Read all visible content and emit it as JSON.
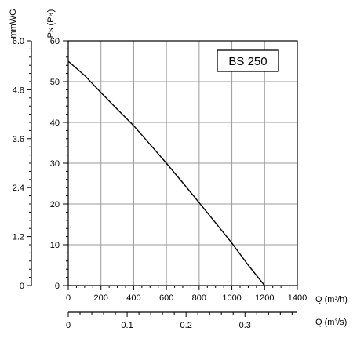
{
  "chart_data": {
    "type": "line",
    "legend_label": "BS 250",
    "series": [
      {
        "x": [
          0,
          100,
          200,
          300,
          400,
          500,
          600,
          700,
          800,
          900,
          1000,
          1100,
          1200
        ],
        "y": [
          55,
          51.5,
          47.3,
          43.2,
          39.2,
          34.6,
          30,
          25.2,
          20.3,
          15.4,
          10.4,
          5,
          0
        ]
      }
    ],
    "x_axis": {
      "label": "Q (m³/h)",
      "ticks": [
        "0",
        "200",
        "400",
        "600",
        "800",
        "1000",
        "1200",
        "1400"
      ],
      "range": [
        0,
        1400
      ]
    },
    "x2_axis": {
      "label": "Q (m³/s)",
      "ticks": [
        "0",
        "0.1",
        "0.2",
        "0.3"
      ],
      "tick_values": [
        0,
        0.1,
        0.2,
        0.3
      ]
    },
    "y_axis": {
      "label": "Ps (Pa)",
      "ticks": [
        "0",
        "10",
        "20",
        "30",
        "40",
        "50",
        "60"
      ],
      "range": [
        0,
        60
      ]
    },
    "y2_axis": {
      "label": "mmWG",
      "ticks": [
        "0",
        "1.2",
        "2.4",
        "3.6",
        "4.8",
        "6.0"
      ],
      "tick_values": [
        0,
        1.2,
        2.4,
        3.6,
        4.8,
        6.0
      ],
      "range": [
        0,
        6
      ]
    },
    "grid": true
  }
}
